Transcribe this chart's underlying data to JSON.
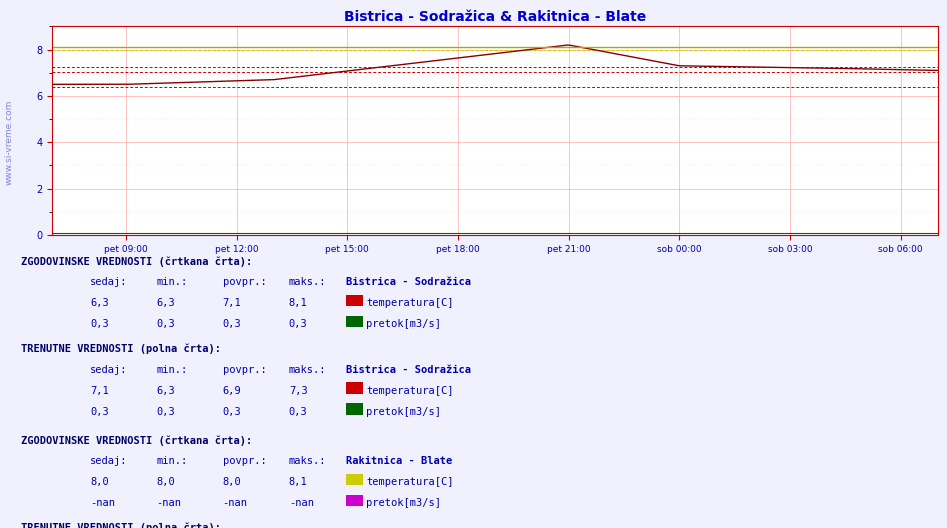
{
  "title": "Bistrica - Sodražica & Rakitnica - Blate",
  "title_color": "#0000cc",
  "bg_color": "#f0f0ff",
  "x_tick_labels": [
    "pet 09:00",
    "pet 12:00",
    "pet 15:00",
    "pet 18:00",
    "pet 21:00",
    "sob 00:00",
    "sob 03:00",
    "sob 06:00"
  ],
  "ylim": [
    0,
    9
  ],
  "yticks": [
    0,
    2,
    4,
    6,
    8
  ],
  "n_points": 288,
  "colors": {
    "bistrica_temp_dashed": "#cc0000",
    "bistrica_temp_solid": "#880000",
    "bistrica_flow_solid": "#006600",
    "rakitnica_temp_dashed": "#cccc00",
    "rakitnica_temp_solid": "#aaaa00",
    "rakitnica_flow_solid": "#cc00cc",
    "grid_major": "#ffaaaa",
    "grid_minor": "#ffdddd",
    "axis_color": "#cc0000",
    "text_color": "#0000aa",
    "spine_color": "#cc0000"
  },
  "watermark_text": "www.si-vreme.com",
  "table_font_size": 7.5,
  "table_text_color": "#0000aa",
  "table_header_color": "#000066"
}
